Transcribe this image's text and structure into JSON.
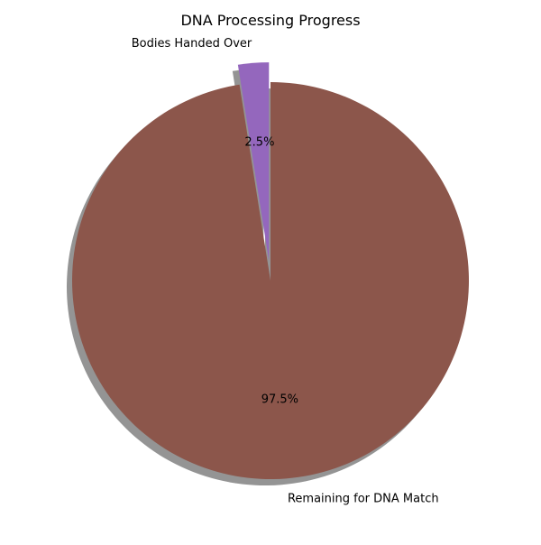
{
  "chart_data": {
    "type": "pie",
    "title": "DNA Processing Progress",
    "slices": [
      {
        "label": "Bodies Handed Over",
        "value": 2.5,
        "pct_label": "2.5%",
        "color": "#9467bd",
        "exploded": true
      },
      {
        "label": "Remaining for DNA Match",
        "value": 97.5,
        "pct_label": "97.5%",
        "color": "#8c564b",
        "exploded": false
      }
    ],
    "start_angle_deg": 90,
    "direction": "counterclockwise",
    "shadow": true,
    "legend": "none"
  }
}
